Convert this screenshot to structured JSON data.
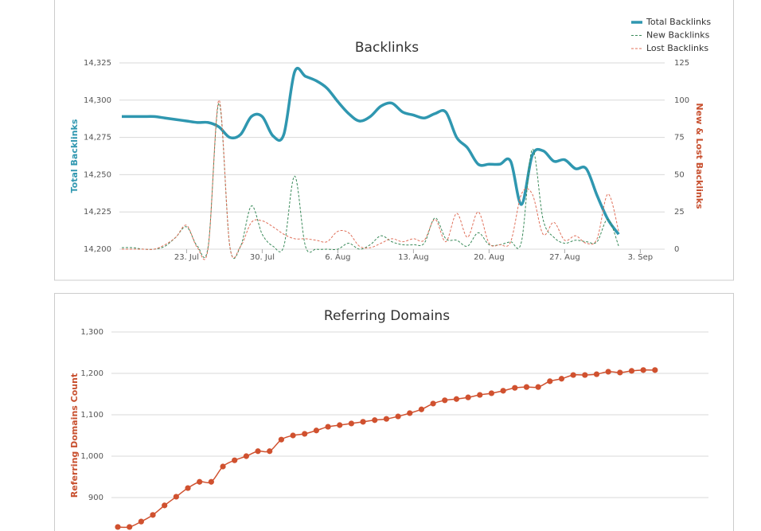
{
  "chart_data": [
    {
      "type": "line",
      "title": "Backlinks",
      "ylabel": "Total Backlinks",
      "y2label": "New & Lost Backlinks",
      "categories": [
        null,
        null,
        null,
        null,
        null,
        null,
        "23. Jul",
        null,
        null,
        null,
        null,
        null,
        null,
        "30. Jul",
        null,
        null,
        null,
        null,
        null,
        null,
        "6. Aug",
        null,
        null,
        null,
        null,
        null,
        null,
        "13. Aug",
        null,
        null,
        null,
        null,
        null,
        null,
        "20. Aug",
        null,
        null,
        null,
        null,
        null,
        null,
        "27. Aug",
        null,
        null,
        null,
        null,
        null,
        null,
        "3. Sep"
      ],
      "ylim": [
        14200,
        14325
      ],
      "yticks": [
        {
          "value": 14200,
          "label": "14,200"
        },
        {
          "value": 14225,
          "label": "14,225"
        },
        {
          "value": 14250,
          "label": "14,250"
        },
        {
          "value": 14275,
          "label": "14,275"
        },
        {
          "value": 14300,
          "label": "14,300"
        },
        {
          "value": 14325,
          "label": "14,325"
        }
      ],
      "y2lim": [
        0,
        125
      ],
      "y2ticks": [
        0,
        25,
        50,
        75,
        100,
        125
      ],
      "grid": true,
      "legend": "top-right",
      "series": [
        {
          "name": "Total Backlinks",
          "color": "#2f97b0",
          "values": [
            14289,
            14289,
            14289,
            14289,
            14288,
            14287,
            14286,
            14285,
            14285,
            14282,
            14275,
            14277,
            14289,
            14289,
            14276,
            14277,
            14319,
            14316,
            14313,
            14308,
            14299,
            14291,
            14286,
            14289,
            14296,
            14298,
            14292,
            14290,
            14288,
            14291,
            14292,
            14275,
            14268,
            14257,
            14257,
            14257,
            14259,
            14230,
            14263,
            14266,
            14259,
            14260,
            14254,
            14254,
            14236,
            14220,
            14210,
            null,
            null
          ]
        },
        {
          "name": "New Backlinks",
          "color": "#3a8a5a",
          "axis": "y2",
          "values": [
            1,
            1,
            0,
            0,
            2,
            8,
            15,
            2,
            2,
            98,
            2,
            2,
            29,
            10,
            2,
            2,
            49,
            2,
            0,
            0,
            0,
            4,
            0,
            3,
            9,
            5,
            3,
            3,
            4,
            21,
            7,
            6,
            2,
            11,
            3,
            3,
            5,
            5,
            67,
            20,
            8,
            4,
            6,
            5,
            5,
            20,
            2,
            null,
            null
          ]
        },
        {
          "name": "Lost Backlinks",
          "color": "#e0705a",
          "axis": "y2",
          "values": [
            0,
            0,
            0,
            0,
            3,
            8,
            16,
            1,
            1,
            100,
            2,
            2,
            18,
            19,
            15,
            10,
            7,
            7,
            6,
            5,
            12,
            11,
            2,
            1,
            4,
            7,
            5,
            7,
            6,
            20,
            5,
            24,
            8,
            25,
            4,
            3,
            5,
            37,
            37,
            10,
            18,
            6,
            9,
            4,
            7,
            37,
            12,
            null,
            null
          ]
        }
      ]
    },
    {
      "type": "line",
      "title": "Referring Domains",
      "ylabel": "Referring Domains Count",
      "ylim": [
        800,
        1300
      ],
      "yticks": [
        900,
        {
          "value": 1000,
          "label": "1,000"
        },
        {
          "value": 1100,
          "label": "1,100"
        },
        {
          "value": 1200,
          "label": "1,200"
        },
        {
          "value": 1300,
          "label": "1,300"
        }
      ],
      "grid": true,
      "color": "#d0512f",
      "values": [
        829,
        829,
        842,
        858,
        881,
        902,
        923,
        938,
        938,
        975,
        990,
        1000,
        1012,
        1012,
        1040,
        1050,
        1054,
        1062,
        1071,
        1075,
        1079,
        1083,
        1087,
        1090,
        1096,
        1104,
        1113,
        1127,
        1135,
        1138,
        1142,
        1148,
        1152,
        1158,
        1165,
        1167,
        1167,
        1181,
        1187,
        1196,
        1196,
        1198,
        1204,
        1202,
        1206,
        1208,
        1208
      ]
    }
  ]
}
